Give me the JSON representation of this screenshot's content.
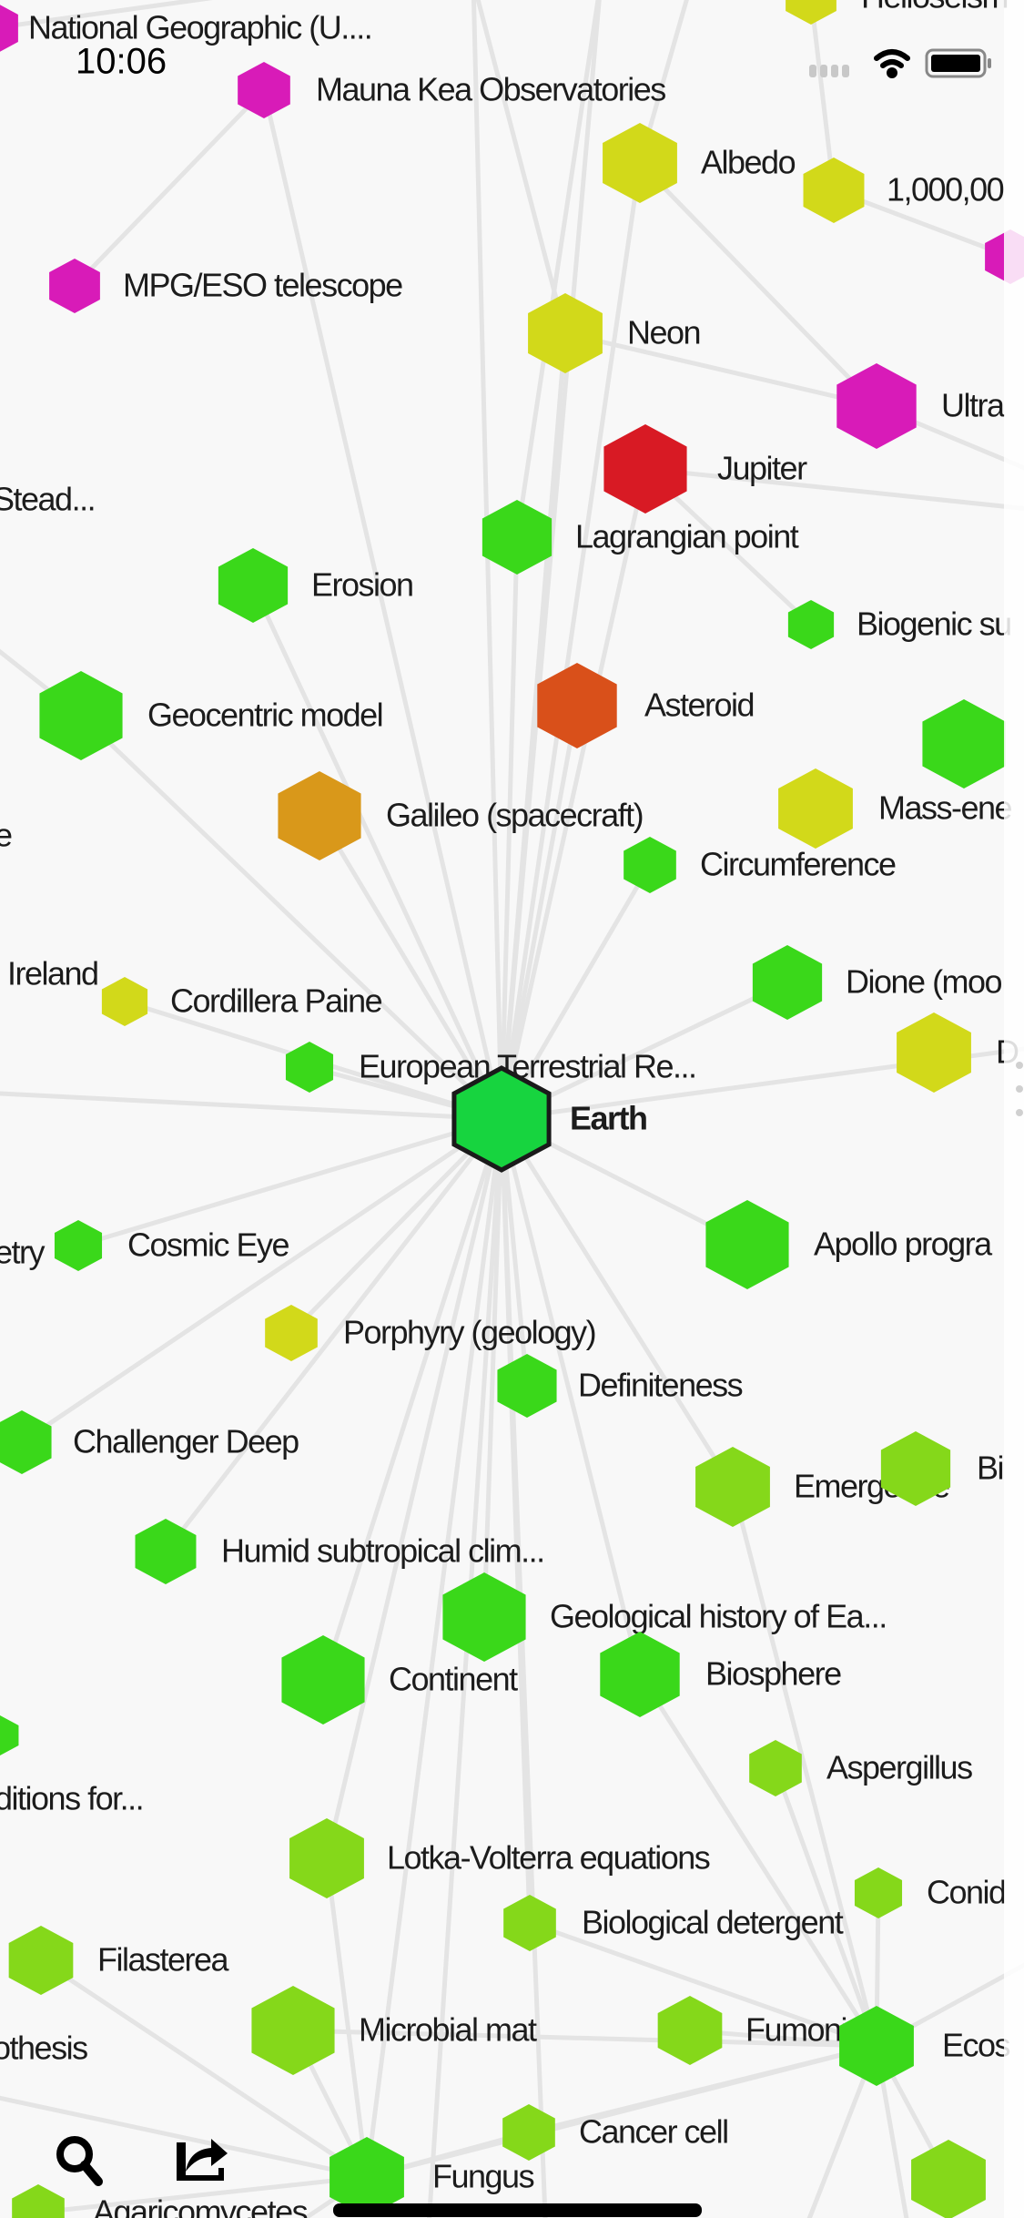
{
  "status_bar": {
    "time": "10:06",
    "icons": [
      "cellular-signal-icon",
      "wifi-icon",
      "battery-icon"
    ]
  },
  "colors": {
    "background": "#f8f8f8",
    "edge": "#e4e4e4",
    "magenta": "#d81bb8",
    "yellow": "#d2d91a",
    "green": "#3ad81a",
    "lime": "#85d81a",
    "red": "#d81a24",
    "orange_red": "#d9501a",
    "orange": "#d9981a",
    "focus": "#17d43f"
  },
  "nodes": [
    {
      "label": "National Geographic (U....",
      "color": "#d81bb8"
    },
    {
      "label": "Helioseism",
      "color": "#d2d91a"
    },
    {
      "label": "Mauna Kea Observatories",
      "color": "#d81bb8"
    },
    {
      "label": "Albedo",
      "color": "#d2d91a"
    },
    {
      "label": "1,000,00",
      "color": "#d2d91a"
    },
    {
      "label": "",
      "color": "#d81bb8"
    },
    {
      "label": "MPG/ESO telescope",
      "color": "#d81bb8"
    },
    {
      "label": "Neon",
      "color": "#d2d91a"
    },
    {
      "label": "Ultra",
      "color": "#d81bb8"
    },
    {
      "label": "Stead...",
      "color": ""
    },
    {
      "label": "Lagrangian point",
      "color": "#3ad81a"
    },
    {
      "label": "Jupiter",
      "color": "#d81a24"
    },
    {
      "label": "Erosion",
      "color": "#3ad81a"
    },
    {
      "label": "Biogenic su",
      "color": "#3ad81a"
    },
    {
      "label": "Geocentric model",
      "color": "#3ad81a"
    },
    {
      "label": "Asteroid",
      "color": "#d9501a"
    },
    {
      "label": "",
      "color": "#3ad81a"
    },
    {
      "label": "Galileo (spacecraft)",
      "color": "#d9981a"
    },
    {
      "label": "Mass-ene",
      "color": "#d2d91a"
    },
    {
      "label": "e",
      "color": ""
    },
    {
      "label": "Circumference",
      "color": "#3ad81a"
    },
    {
      "label": "Ireland",
      "color": ""
    },
    {
      "label": "Cordillera Paine",
      "color": "#d2d91a"
    },
    {
      "label": "Dione (moo",
      "color": "#3ad81a"
    },
    {
      "label": "D",
      "color": "#d2d91a"
    },
    {
      "label": "European Terrestrial Re...",
      "color": "#3ad81a"
    },
    {
      "label": "Earth",
      "color": "#17d43f",
      "selected": true
    },
    {
      "label": "etry",
      "color": ""
    },
    {
      "label": "Cosmic Eye",
      "color": "#3ad81a"
    },
    {
      "label": "Apollo progra",
      "color": "#3ad81a"
    },
    {
      "label": "Porphyry (geology)",
      "color": "#d2d91a"
    },
    {
      "label": "Definiteness",
      "color": "#3ad81a"
    },
    {
      "label": "Challenger Deep",
      "color": "#3ad81a"
    },
    {
      "label": "Emergence",
      "color": "#85d81a"
    },
    {
      "label": "Bi",
      "color": "#85d81a"
    },
    {
      "label": "Humid subtropical clim...",
      "color": "#3ad81a"
    },
    {
      "label": "Geological history of Ea...",
      "color": "#3ad81a"
    },
    {
      "label": "Continent",
      "color": "#3ad81a"
    },
    {
      "label": "Biosphere",
      "color": "#3ad81a"
    },
    {
      "label": "",
      "color": "#3ad81a"
    },
    {
      "label": "Aspergillus",
      "color": "#85d81a"
    },
    {
      "label": "ditions for...",
      "color": ""
    },
    {
      "label": "Lotka-Volterra equations",
      "color": "#85d81a"
    },
    {
      "label": "Biological detergent",
      "color": "#85d81a"
    },
    {
      "label": "Conid",
      "color": "#85d81a"
    },
    {
      "label": "Filasterea",
      "color": "#85d81a"
    },
    {
      "label": "othesis",
      "color": ""
    },
    {
      "label": "Microbial mat",
      "color": "#85d81a"
    },
    {
      "label": "Fumonisin",
      "color": "#85d81a"
    },
    {
      "label": "Ecos",
      "color": "#3ad81a"
    },
    {
      "label": "Cancer cell",
      "color": "#85d81a"
    },
    {
      "label": "Fungus",
      "color": "#3ad81a"
    },
    {
      "label": "Agaricomycetes",
      "color": "#85d81a"
    },
    {
      "label": "",
      "color": "#85d81a"
    }
  ],
  "toolbar": {
    "search_icon": "search-icon",
    "share_icon": "share-icon"
  }
}
